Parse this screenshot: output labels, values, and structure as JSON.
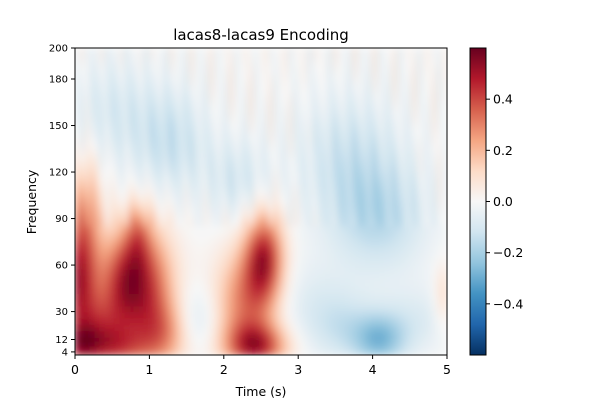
{
  "chart_data": {
    "type": "heatmap",
    "title": "lacas8-lacas9 Encoding",
    "xlabel": "Time (s)",
    "ylabel": "Frequency",
    "xlim": [
      0,
      5
    ],
    "ylim": [
      2,
      200
    ],
    "x_ticks": [
      0,
      1,
      2,
      3,
      4,
      5
    ],
    "x_tick_labels": [
      "0",
      "1",
      "2",
      "3",
      "4",
      "5"
    ],
    "y_ticks": [
      4,
      12,
      30,
      60,
      90,
      120,
      150,
      180,
      200
    ],
    "y_tick_labels": [
      "4",
      "12",
      "30",
      "60",
      "90",
      "120",
      "150",
      "180",
      "200"
    ],
    "colormap": "RdBu_r",
    "colorbar": {
      "vmin": -0.6,
      "vmax": 0.6,
      "ticks": [
        0.4,
        0.2,
        0.0,
        -0.2,
        -0.4
      ],
      "tick_labels": [
        "0.4",
        "0.2",
        "0.0",
        "−0.2",
        "−0.4"
      ]
    },
    "grid": false,
    "approximate_field": {
      "freq_bands": [
        "4-30",
        "30-60",
        "60-90",
        "90-200"
      ],
      "regions": [
        {
          "time": [
            0.0,
            0.4
          ],
          "freq": [
            4,
            120
          ],
          "value": 0.35
        },
        {
          "time": [
            0.4,
            1.3
          ],
          "freq": [
            4,
            90
          ],
          "value": 0.3
        },
        {
          "time": [
            1.3,
            2.0
          ],
          "freq": [
            4,
            60
          ],
          "value": -0.05
        },
        {
          "time": [
            2.0,
            2.8
          ],
          "freq": [
            4,
            80
          ],
          "value": 0.32
        },
        {
          "time": [
            2.8,
            5.0
          ],
          "freq": [
            4,
            60
          ],
          "value": -0.1
        },
        {
          "time": [
            3.8,
            4.3
          ],
          "freq": [
            4,
            30
          ],
          "value": -0.22
        },
        {
          "time": [
            0.0,
            5.0
          ],
          "freq": [
            90,
            200
          ],
          "value": -0.08
        }
      ]
    }
  }
}
